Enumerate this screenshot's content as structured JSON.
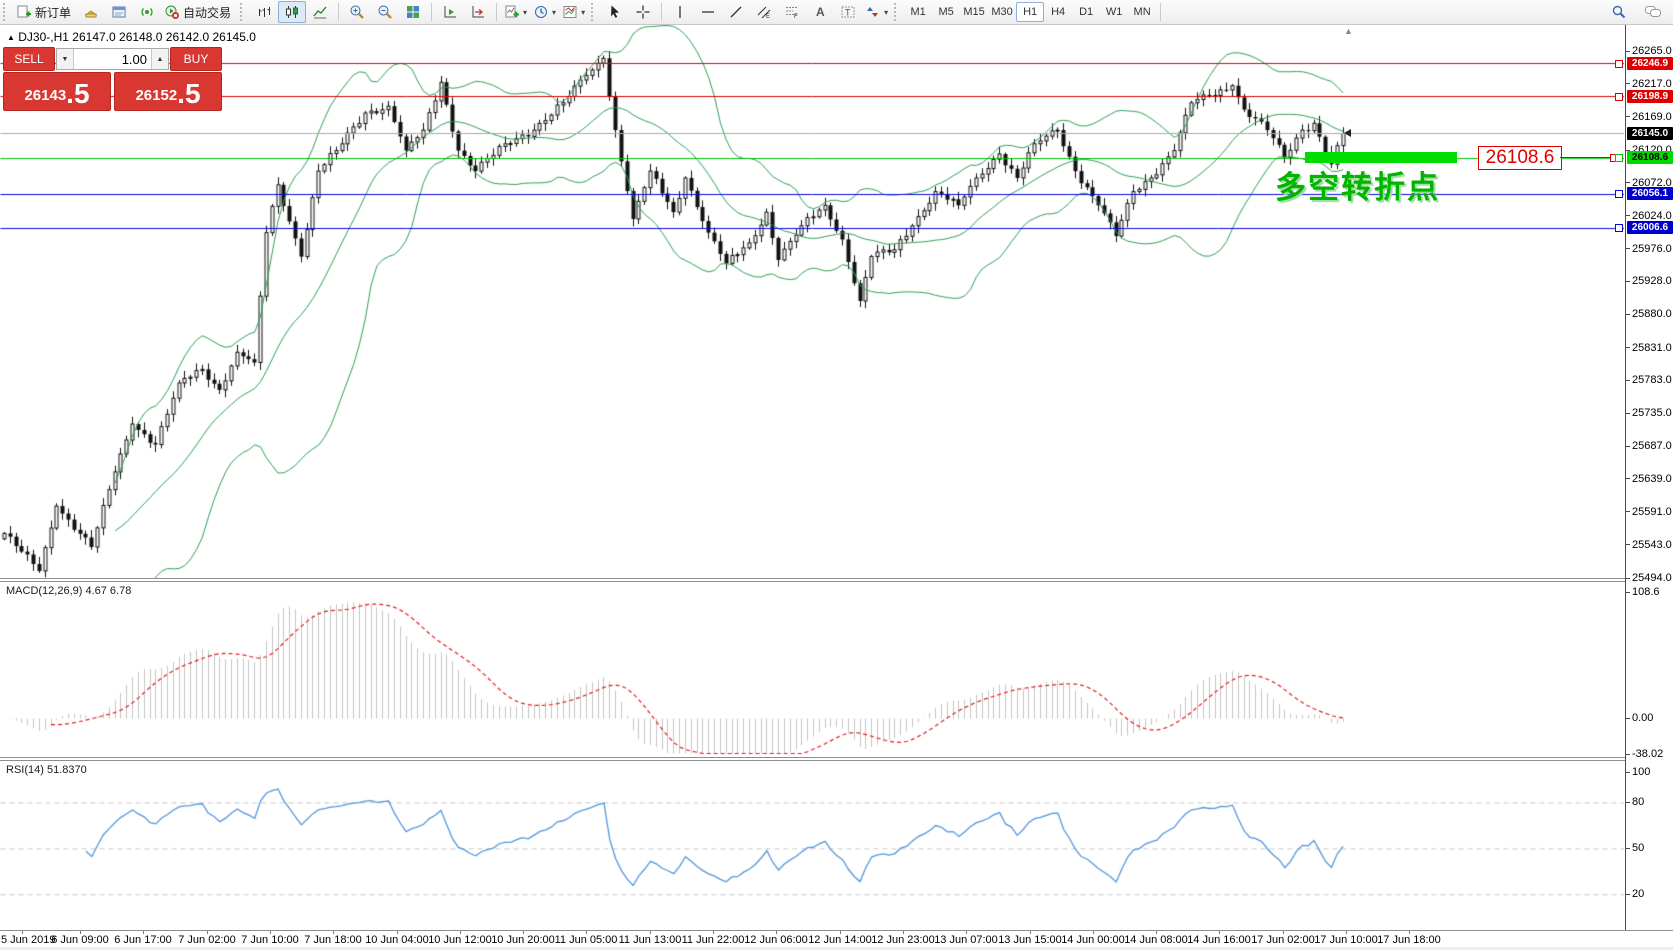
{
  "toolbar": {
    "new_order_label": "新订单",
    "autotrading_label": "自动交易",
    "timeframes": [
      "M1",
      "M5",
      "M15",
      "M30",
      "H1",
      "H4",
      "D1",
      "W1",
      "MN"
    ],
    "active_timeframe": "H1"
  },
  "symbol_line": {
    "marker": "▲",
    "symbol": "DJ30-,H1",
    "open": "26147.0",
    "high": "26148.0",
    "low": "26142.0",
    "close": "26145.0"
  },
  "trade_panel": {
    "sell_label": "SELL",
    "buy_label": "BUY",
    "volume": "1.00",
    "sell_price_main": "26143",
    "sell_price_frac": ".5",
    "buy_price_main": "26152",
    "buy_price_frac": ".5"
  },
  "chart_data": {
    "type": "candlestick",
    "title": "DJ30-,H1",
    "ohlc_display": [
      26147.0,
      26148.0,
      26142.0,
      26145.0
    ],
    "last_close": 26145.0,
    "bar_count": 231,
    "ylim_main": [
      25494.0,
      26265.0
    ],
    "price_ticks": [
      26265.0,
      26217.0,
      26169.0,
      26120.0,
      26072.0,
      26024.0,
      25976.0,
      25928.0,
      25880.0,
      25831.0,
      25783.0,
      25735.0,
      25687.0,
      25639.0,
      25591.0,
      25543.0,
      25494.0
    ],
    "close_keyframes": [
      [
        0,
        25560
      ],
      [
        6,
        25505
      ],
      [
        9,
        25600
      ],
      [
        15,
        25540
      ],
      [
        19,
        25650
      ],
      [
        22,
        25720
      ],
      [
        26,
        25690
      ],
      [
        30,
        25780
      ],
      [
        34,
        25800
      ],
      [
        37,
        25770
      ],
      [
        40,
        25825
      ],
      [
        43,
        25810
      ],
      [
        45,
        26000
      ],
      [
        47,
        26070
      ],
      [
        51,
        25965
      ],
      [
        54,
        26090
      ],
      [
        57,
        26120
      ],
      [
        62,
        26175
      ],
      [
        66,
        26185
      ],
      [
        69,
        26120
      ],
      [
        72,
        26150
      ],
      [
        75,
        26220
      ],
      [
        78,
        26120
      ],
      [
        81,
        26090
      ],
      [
        86,
        26130
      ],
      [
        91,
        26150
      ],
      [
        96,
        26190
      ],
      [
        100,
        26230
      ],
      [
        103,
        26255
      ],
      [
        105,
        26150
      ],
      [
        108,
        26020
      ],
      [
        111,
        26090
      ],
      [
        115,
        26030
      ],
      [
        117,
        26080
      ],
      [
        121,
        26000
      ],
      [
        124,
        25955
      ],
      [
        128,
        25985
      ],
      [
        131,
        26030
      ],
      [
        133,
        25960
      ],
      [
        137,
        26010
      ],
      [
        141,
        26040
      ],
      [
        144,
        25990
      ],
      [
        147,
        25900
      ],
      [
        149,
        25965
      ],
      [
        153,
        25975
      ],
      [
        156,
        26010
      ],
      [
        160,
        26060
      ],
      [
        164,
        26040
      ],
      [
        167,
        26080
      ],
      [
        171,
        26115
      ],
      [
        174,
        26080
      ],
      [
        177,
        26130
      ],
      [
        181,
        26150
      ],
      [
        184,
        26090
      ],
      [
        188,
        26040
      ],
      [
        191,
        25995
      ],
      [
        194,
        26060
      ],
      [
        197,
        26080
      ],
      [
        201,
        26120
      ],
      [
        204,
        26190
      ],
      [
        207,
        26200
      ],
      [
        211,
        26215
      ],
      [
        213,
        26180
      ],
      [
        217,
        26150
      ],
      [
        220,
        26110
      ],
      [
        223,
        26150
      ],
      [
        225,
        26160
      ],
      [
        228,
        26100
      ],
      [
        230,
        26145
      ]
    ],
    "horizontal_lines": [
      {
        "price": 26246.9,
        "color": "#dd0000",
        "badge_bg": "#dd0000",
        "badge_fg": "#ffffff",
        "handle": true
      },
      {
        "price": 26198.9,
        "color": "#dd0000",
        "badge_bg": "#dd0000",
        "badge_fg": "#ffffff",
        "handle": true
      },
      {
        "price": 26145.0,
        "color": "#aaaaaa",
        "badge_bg": "#000000",
        "badge_fg": "#ffffff",
        "handle": false
      },
      {
        "price": 26108.6,
        "color": "#00c000",
        "badge_bg": "#00d800",
        "badge_fg": "#000000",
        "handle": true
      },
      {
        "price": 26056.1,
        "color": "#0a0ae0",
        "badge_bg": "#0000cc",
        "badge_fg": "#ffffff",
        "handle": true
      },
      {
        "price": 26006.6,
        "color": "#0a0ae0",
        "badge_bg": "#0000cc",
        "badge_fg": "#ffffff",
        "handle": true
      }
    ],
    "bollinger": {
      "period": 20,
      "deviation": 2,
      "color": "#2f9e54"
    },
    "macd": {
      "label": "MACD(12,26,9) 4.67 6.78",
      "params": [
        12,
        26,
        9
      ],
      "value_macd": 4.67,
      "value_signal": 6.78,
      "hist_color": "#c4c4c4",
      "signal_color": "#e02020",
      "ticks": [
        {
          "v": 108.6,
          "label": "108.6"
        },
        {
          "v": 0,
          "label": "0.00"
        },
        {
          "v": -38.02,
          "label": "-38.02"
        }
      ]
    },
    "rsi": {
      "label": "RSI(14) 51.8370",
      "period": 14,
      "value": 51.837,
      "color": "#5596dd",
      "levels": [
        80,
        50,
        20
      ],
      "ticks": [
        {
          "v": 100,
          "label": "100"
        },
        {
          "v": 80,
          "label": "80"
        },
        {
          "v": 50,
          "label": "50"
        },
        {
          "v": 20,
          "label": "20"
        }
      ]
    },
    "time_labels": [
      "5 Jun 2019",
      "6 Jun 09:00",
      "6 Jun 17:00",
      "7 Jun 02:00",
      "7 Jun 10:00",
      "7 Jun 18:00",
      "10 Jun 04:00",
      "10 Jun 12:00",
      "10 Jun 20:00",
      "11 Jun 05:00",
      "11 Jun 13:00",
      "11 Jun 22:00",
      "12 Jun 06:00",
      "12 Jun 14:00",
      "12 Jun 23:00",
      "13 Jun 07:00",
      "13 Jun 15:00",
      "14 Jun 00:00",
      "14 Jun 08:00",
      "14 Jun 16:00",
      "17 Jun 02:00",
      "17 Jun 10:00",
      "17 Jun 18:00"
    ],
    "annotation": {
      "text": "多空转折点",
      "color": "#00b400"
    },
    "callout": {
      "text": "26108.6",
      "color": "#e00000"
    },
    "highlight": {
      "color": "#00dc00"
    }
  }
}
